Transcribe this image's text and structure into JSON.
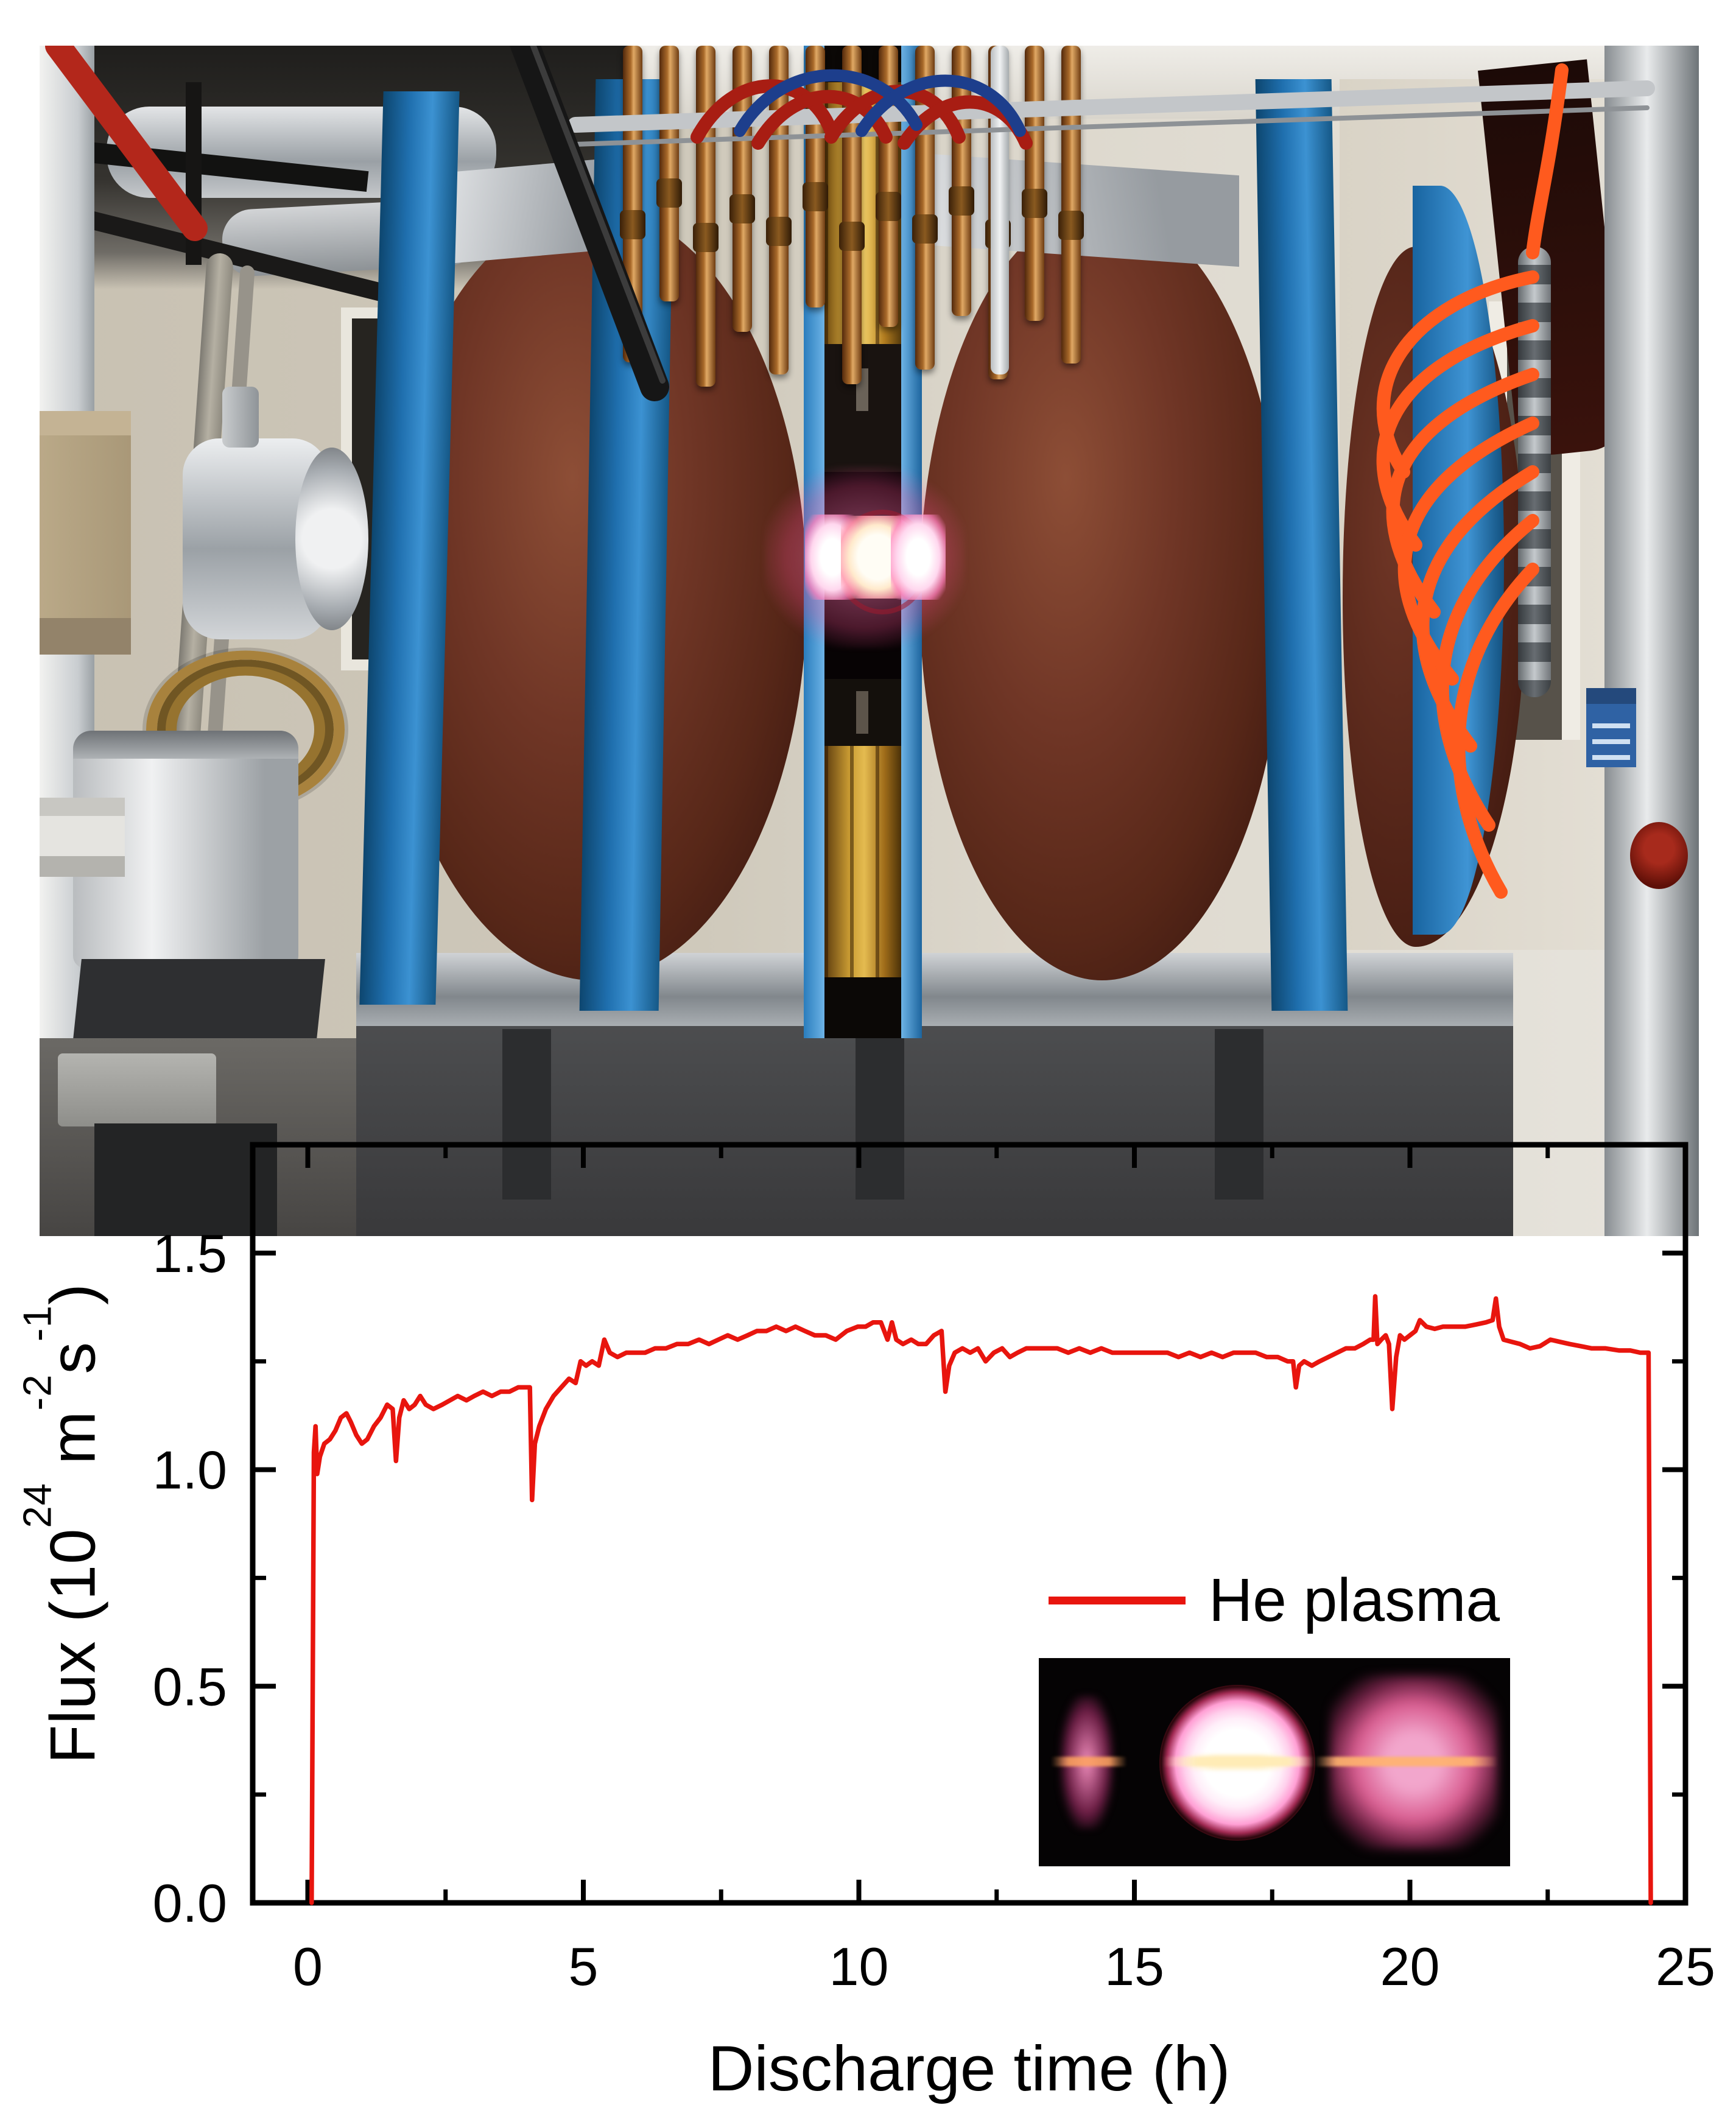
{
  "photo": {
    "palette": {
      "fin_blue": "#1f6fae",
      "coil_brown": "#6b3425",
      "copper": "#b06a28",
      "cable_red": "#a81d13",
      "cable_blue": "#1d3e8c",
      "tube_orange": "#ff5a1e",
      "pipe_red": "#b3271b",
      "steel": "#c3c6c9",
      "plasma_glow": "#ff9fd0"
    }
  },
  "chart_data": {
    "type": "line",
    "title": "",
    "xlabel": "Discharge time (h)",
    "ylabel_parts": [
      "Flux (10",
      "24",
      " m",
      "-2",
      "s",
      "-1",
      ")"
    ],
    "xlim": [
      -1,
      25
    ],
    "ylim": [
      0,
      1.75
    ],
    "xticks": [
      0,
      5,
      10,
      15,
      20,
      25
    ],
    "xtick_labels": [
      "0",
      "5",
      "10",
      "15",
      "20",
      "25"
    ],
    "xminor": [
      2.5,
      7.5,
      12.5,
      17.5,
      22.5
    ],
    "yticks": [
      0.0,
      0.5,
      1.0,
      1.5
    ],
    "ytick_labels": [
      "0.0",
      "0.5",
      "1.0",
      "1.5"
    ],
    "yminor": [
      0.25,
      0.75,
      1.25
    ],
    "grid": false,
    "legend_position": "center-right",
    "series": [
      {
        "name": "He plasma",
        "color": "#e8150e",
        "points": [
          [
            0.07,
            0
          ],
          [
            0.11,
            1.04
          ],
          [
            0.14,
            1.1
          ],
          [
            0.17,
            0.99
          ],
          [
            0.22,
            1.03
          ],
          [
            0.3,
            1.06
          ],
          [
            0.4,
            1.07
          ],
          [
            0.5,
            1.09
          ],
          [
            0.6,
            1.12
          ],
          [
            0.7,
            1.13
          ],
          [
            0.78,
            1.11
          ],
          [
            0.88,
            1.08
          ],
          [
            0.98,
            1.06
          ],
          [
            1.08,
            1.07
          ],
          [
            1.2,
            1.1
          ],
          [
            1.32,
            1.12
          ],
          [
            1.44,
            1.15
          ],
          [
            1.54,
            1.14
          ],
          [
            1.6,
            1.02
          ],
          [
            1.66,
            1.12
          ],
          [
            1.74,
            1.16
          ],
          [
            1.84,
            1.14
          ],
          [
            1.94,
            1.15
          ],
          [
            2.04,
            1.17
          ],
          [
            2.14,
            1.15
          ],
          [
            2.28,
            1.14
          ],
          [
            2.44,
            1.15
          ],
          [
            2.58,
            1.16
          ],
          [
            2.72,
            1.17
          ],
          [
            2.88,
            1.16
          ],
          [
            3.02,
            1.17
          ],
          [
            3.18,
            1.18
          ],
          [
            3.34,
            1.17
          ],
          [
            3.5,
            1.18
          ],
          [
            3.66,
            1.18
          ],
          [
            3.82,
            1.19
          ],
          [
            3.96,
            1.19
          ],
          [
            4.03,
            1.19
          ],
          [
            4.07,
            0.93
          ],
          [
            4.12,
            1.06
          ],
          [
            4.2,
            1.1
          ],
          [
            4.32,
            1.14
          ],
          [
            4.46,
            1.17
          ],
          [
            4.6,
            1.19
          ],
          [
            4.74,
            1.21
          ],
          [
            4.86,
            1.2
          ],
          [
            4.95,
            1.25
          ],
          [
            5.05,
            1.24
          ],
          [
            5.16,
            1.25
          ],
          [
            5.28,
            1.24
          ],
          [
            5.38,
            1.3
          ],
          [
            5.48,
            1.27
          ],
          [
            5.62,
            1.26
          ],
          [
            5.78,
            1.27
          ],
          [
            5.95,
            1.27
          ],
          [
            6.12,
            1.27
          ],
          [
            6.3,
            1.28
          ],
          [
            6.5,
            1.28
          ],
          [
            6.7,
            1.29
          ],
          [
            6.9,
            1.29
          ],
          [
            7.1,
            1.3
          ],
          [
            7.28,
            1.29
          ],
          [
            7.45,
            1.3
          ],
          [
            7.62,
            1.31
          ],
          [
            7.8,
            1.3
          ],
          [
            7.98,
            1.31
          ],
          [
            8.15,
            1.32
          ],
          [
            8.32,
            1.32
          ],
          [
            8.5,
            1.33
          ],
          [
            8.68,
            1.32
          ],
          [
            8.85,
            1.33
          ],
          [
            9.02,
            1.32
          ],
          [
            9.2,
            1.31
          ],
          [
            9.4,
            1.31
          ],
          [
            9.58,
            1.3
          ],
          [
            9.78,
            1.32
          ],
          [
            9.98,
            1.33
          ],
          [
            10.12,
            1.33
          ],
          [
            10.26,
            1.34
          ],
          [
            10.4,
            1.34
          ],
          [
            10.52,
            1.3
          ],
          [
            10.6,
            1.34
          ],
          [
            10.68,
            1.3
          ],
          [
            10.8,
            1.29
          ],
          [
            10.95,
            1.3
          ],
          [
            11.08,
            1.29
          ],
          [
            11.22,
            1.29
          ],
          [
            11.36,
            1.31
          ],
          [
            11.5,
            1.32
          ],
          [
            11.57,
            1.18
          ],
          [
            11.64,
            1.24
          ],
          [
            11.74,
            1.27
          ],
          [
            11.88,
            1.28
          ],
          [
            12.02,
            1.27
          ],
          [
            12.16,
            1.28
          ],
          [
            12.3,
            1.25
          ],
          [
            12.45,
            1.27
          ],
          [
            12.6,
            1.28
          ],
          [
            12.74,
            1.26
          ],
          [
            12.88,
            1.27
          ],
          [
            13.04,
            1.28
          ],
          [
            13.22,
            1.28
          ],
          [
            13.4,
            1.28
          ],
          [
            13.6,
            1.28
          ],
          [
            13.8,
            1.27
          ],
          [
            14.0,
            1.28
          ],
          [
            14.2,
            1.27
          ],
          [
            14.4,
            1.28
          ],
          [
            14.6,
            1.27
          ],
          [
            14.8,
            1.27
          ],
          [
            15.0,
            1.27
          ],
          [
            15.2,
            1.27
          ],
          [
            15.4,
            1.27
          ],
          [
            15.6,
            1.27
          ],
          [
            15.8,
            1.26
          ],
          [
            16.0,
            1.27
          ],
          [
            16.2,
            1.26
          ],
          [
            16.4,
            1.27
          ],
          [
            16.6,
            1.26
          ],
          [
            16.8,
            1.27
          ],
          [
            17.0,
            1.27
          ],
          [
            17.2,
            1.27
          ],
          [
            17.4,
            1.26
          ],
          [
            17.6,
            1.26
          ],
          [
            17.78,
            1.25
          ],
          [
            17.88,
            1.25
          ],
          [
            17.93,
            1.19
          ],
          [
            17.99,
            1.24
          ],
          [
            18.08,
            1.25
          ],
          [
            18.22,
            1.24
          ],
          [
            18.36,
            1.25
          ],
          [
            18.52,
            1.26
          ],
          [
            18.68,
            1.27
          ],
          [
            18.84,
            1.28
          ],
          [
            19.0,
            1.28
          ],
          [
            19.15,
            1.29
          ],
          [
            19.28,
            1.3
          ],
          [
            19.34,
            1.3
          ],
          [
            19.37,
            1.4
          ],
          [
            19.41,
            1.29
          ],
          [
            19.48,
            1.3
          ],
          [
            19.56,
            1.31
          ],
          [
            19.62,
            1.29
          ],
          [
            19.68,
            1.14
          ],
          [
            19.75,
            1.26
          ],
          [
            19.82,
            1.31
          ],
          [
            19.9,
            1.3
          ],
          [
            20.0,
            1.31
          ],
          [
            20.1,
            1.32
          ],
          [
            20.18,
            1.345
          ],
          [
            20.3,
            1.33
          ],
          [
            20.45,
            1.325
          ],
          [
            20.6,
            1.33
          ],
          [
            20.8,
            1.33
          ],
          [
            21.0,
            1.33
          ],
          [
            21.2,
            1.335
          ],
          [
            21.38,
            1.34
          ],
          [
            21.5,
            1.345
          ],
          [
            21.56,
            1.395
          ],
          [
            21.62,
            1.33
          ],
          [
            21.7,
            1.3
          ],
          [
            21.85,
            1.295
          ],
          [
            22.0,
            1.29
          ],
          [
            22.18,
            1.28
          ],
          [
            22.36,
            1.285
          ],
          [
            22.55,
            1.3
          ],
          [
            22.72,
            1.295
          ],
          [
            22.9,
            1.29
          ],
          [
            23.1,
            1.285
          ],
          [
            23.3,
            1.28
          ],
          [
            23.55,
            1.28
          ],
          [
            23.8,
            1.275
          ],
          [
            24.0,
            1.275
          ],
          [
            24.18,
            1.27
          ],
          [
            24.33,
            1.27
          ],
          [
            24.37,
            0
          ]
        ]
      }
    ]
  }
}
